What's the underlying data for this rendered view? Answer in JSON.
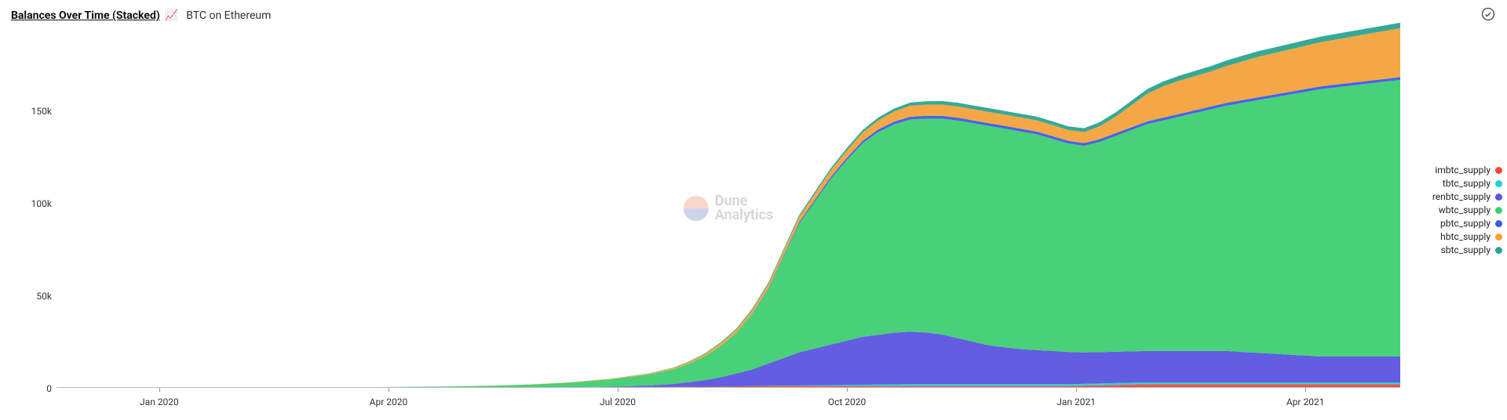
{
  "header": {
    "title": "Balances Over Time (Stacked)",
    "emoji": "📈",
    "subtitle": "BTC on Ethereum"
  },
  "watermark": {
    "line1": "Dune",
    "line2": "Analytics",
    "top_color": "#f08d74",
    "bottom_color": "#6f86c8"
  },
  "chart": {
    "type": "stacked-area",
    "background_color": "#ffffff",
    "axis_text_color": "#333333",
    "axis_fontsize": 12,
    "ylim": [
      0,
      195000
    ],
    "y_ticks": [
      {
        "value": 0,
        "label": "0"
      },
      {
        "value": 50000,
        "label": "50k"
      },
      {
        "value": 100000,
        "label": "100k"
      },
      {
        "value": 150000,
        "label": "150k"
      }
    ],
    "x_index_max": 170,
    "x_ticks": [
      {
        "i": 13,
        "label": "Jan 2020"
      },
      {
        "i": 42,
        "label": "Apr 2020"
      },
      {
        "i": 71,
        "label": "Jul 2020"
      },
      {
        "i": 100,
        "label": "Oct 2020"
      },
      {
        "i": 129,
        "label": "Jan 2021"
      },
      {
        "i": 158,
        "label": "Apr 2021"
      }
    ],
    "samples_i": [
      0,
      10,
      20,
      30,
      40,
      50,
      55,
      60,
      65,
      70,
      75,
      78,
      80,
      82,
      84,
      86,
      88,
      90,
      92,
      94,
      96,
      98,
      100,
      102,
      104,
      106,
      108,
      110,
      112,
      114,
      116,
      118,
      120,
      122,
      124,
      126,
      128,
      130,
      132,
      134,
      136,
      138,
      140,
      142,
      144,
      146,
      148,
      150,
      152,
      154,
      156,
      158,
      160,
      162,
      164,
      166,
      168,
      170
    ],
    "series": [
      {
        "name": "imbtc_supply",
        "color": "#e74c3c",
        "values": [
          0,
          0,
          0,
          0,
          0,
          200,
          250,
          300,
          350,
          400,
          500,
          550,
          600,
          650,
          700,
          800,
          900,
          1000,
          1000,
          1000,
          1000,
          1000,
          1000,
          1000,
          1000,
          1000,
          1000,
          1000,
          1000,
          1000,
          1000,
          1000,
          1000,
          1000,
          1000,
          1000,
          1000,
          1200,
          1400,
          1600,
          1800,
          2000,
          2000,
          2000,
          2000,
          2000,
          2000,
          2000,
          2000,
          2000,
          2000,
          2000,
          2000,
          2000,
          2000,
          2000,
          2000,
          2000
        ]
      },
      {
        "name": "tbtc_supply",
        "color": "#1fd1d6",
        "values": [
          0,
          0,
          0,
          0,
          0,
          0,
          0,
          0,
          0,
          0,
          0,
          0,
          0,
          0,
          0,
          0,
          50,
          100,
          200,
          300,
          400,
          500,
          600,
          700,
          800,
          900,
          1000,
          1000,
          1000,
          1000,
          1000,
          1000,
          1000,
          1000,
          1000,
          1000,
          1000,
          1000,
          1000,
          1000,
          1000,
          1000,
          1000,
          1000,
          1000,
          1000,
          1000,
          1000,
          1000,
          1000,
          1000,
          1000,
          1000,
          1000,
          1000,
          1000,
          1000,
          1000
        ]
      },
      {
        "name": "renbtc_supply",
        "color": "#5b54e0",
        "values": [
          0,
          0,
          0,
          0,
          0,
          0,
          0,
          0,
          0,
          200,
          800,
          1500,
          2500,
          3500,
          5000,
          7000,
          9000,
          12000,
          15000,
          18000,
          20000,
          22000,
          24000,
          26000,
          27000,
          28000,
          28500,
          28000,
          27000,
          25000,
          23000,
          21000,
          20000,
          19000,
          18500,
          18000,
          17500,
          17000,
          17000,
          17000,
          17000,
          17000,
          17000,
          17000,
          17000,
          17000,
          17000,
          16500,
          16000,
          15500,
          15000,
          14500,
          14000,
          14000,
          14000,
          14000,
          14000,
          14000
        ]
      },
      {
        "name": "wbtc_supply",
        "color": "#3ecf72",
        "values": [
          200,
          250,
          300,
          350,
          400,
          600,
          900,
          1500,
          2500,
          4000,
          6000,
          8000,
          10000,
          13000,
          17000,
          22000,
          30000,
          40000,
          55000,
          70000,
          80000,
          90000,
          98000,
          105000,
          110000,
          113000,
          115000,
          116000,
          117000,
          118000,
          118500,
          119000,
          118500,
          118000,
          117000,
          115000,
          113000,
          112000,
          114000,
          117000,
          120000,
          123000,
          125000,
          127000,
          129000,
          131000,
          133000,
          135000,
          137000,
          139000,
          141000,
          143000,
          145000,
          146000,
          147000,
          148000,
          149000,
          150000
        ]
      },
      {
        "name": "pbtc_supply",
        "color": "#3b5de7",
        "values": [
          0,
          0,
          0,
          0,
          0,
          0,
          0,
          0,
          0,
          0,
          0,
          0,
          0,
          0,
          0,
          0,
          200,
          400,
          600,
          800,
          1000,
          1100,
          1200,
          1300,
          1400,
          1500,
          1500,
          1500,
          1500,
          1500,
          1500,
          1500,
          1500,
          1500,
          1500,
          1500,
          1500,
          1500,
          1500,
          1500,
          1500,
          1500,
          1500,
          1500,
          1500,
          1500,
          1500,
          1500,
          1500,
          1500,
          1500,
          1500,
          1500,
          1500,
          1500,
          1500,
          1500,
          1500
        ]
      },
      {
        "name": "hbtc_supply",
        "color": "#f5a23b",
        "values": [
          0,
          0,
          0,
          0,
          0,
          0,
          50,
          100,
          200,
          300,
          500,
          700,
          900,
          1100,
          1400,
          1700,
          2000,
          2300,
          2600,
          2900,
          3200,
          3500,
          4000,
          4500,
          5000,
          5500,
          6000,
          6100,
          6100,
          6100,
          6100,
          6100,
          6100,
          6100,
          6100,
          6000,
          5800,
          6000,
          7000,
          9000,
          12000,
          15000,
          17000,
          18000,
          18500,
          19000,
          20000,
          21000,
          22000,
          22500,
          23000,
          23500,
          24000,
          24500,
          25000,
          25500,
          26000,
          26500
        ]
      },
      {
        "name": "sbtc_supply",
        "color": "#2aa490",
        "values": [
          0,
          0,
          0,
          0,
          0,
          0,
          0,
          0,
          0,
          0,
          100,
          200,
          300,
          400,
          500,
          600,
          700,
          800,
          900,
          1000,
          1100,
          1200,
          1300,
          1400,
          1500,
          1600,
          1700,
          1800,
          1900,
          2000,
          2000,
          2000,
          2000,
          2000,
          2000,
          2000,
          2000,
          2100,
          2200,
          2300,
          2400,
          2500,
          2600,
          2700,
          2800,
          2900,
          3000,
          3000,
          3000,
          3000,
          3000,
          3000,
          3000,
          3000,
          3000,
          3000,
          3000,
          3000
        ]
      }
    ],
    "legend_order": [
      "imbtc_supply",
      "tbtc_supply",
      "renbtc_supply",
      "wbtc_supply",
      "pbtc_supply",
      "hbtc_supply",
      "sbtc_supply"
    ]
  }
}
